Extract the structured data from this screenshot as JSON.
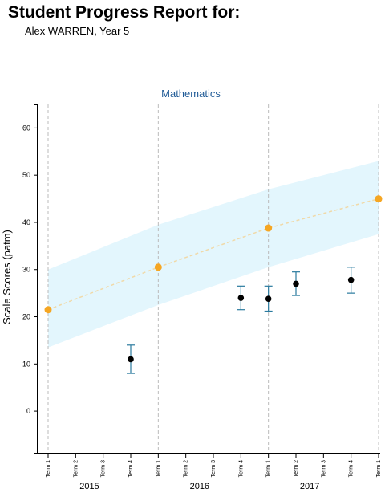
{
  "header": {
    "title": "Student Progress Report for:",
    "student": "Alex WARREN, Year 5"
  },
  "colors": {
    "band": "#e3f6fd",
    "expected_point": "#f5a623",
    "expected_line": "#f0d9a8",
    "student_point": "#000000",
    "error_bar": "#2a7a9e",
    "title": "#1f5a96"
  },
  "chart_data": {
    "type": "scatter",
    "title": "Mathematics",
    "ylabel": "Scale Scores (patm)",
    "xlabel": "",
    "ylim": [
      -9,
      65
    ],
    "yticks": [
      0,
      10,
      20,
      30,
      40,
      50,
      60
    ],
    "grid": "vertical dashed at Term 1",
    "x_terms": [
      "Term 1",
      "Term 2",
      "Term 3",
      "Term 4",
      "Term 1",
      "Term 2",
      "Term 3",
      "Term 4",
      "Term 1",
      "Term 2",
      "Term 3",
      "Term 4",
      "Term 1"
    ],
    "years": [
      {
        "label": "2015",
        "center_term": 1.5
      },
      {
        "label": "2016",
        "center_term": 5.5
      },
      {
        "label": "2017",
        "center_term": 9.5
      }
    ],
    "expected": [
      {
        "term": 0,
        "value": 21.5
      },
      {
        "term": 4,
        "value": 30.5
      },
      {
        "term": 8,
        "value": 38.8
      },
      {
        "term": 12,
        "value": 45
      }
    ],
    "band": [
      {
        "term": 0,
        "lower": 13.5,
        "upper": 30
      },
      {
        "term": 4,
        "lower": 22.5,
        "upper": 39.5
      },
      {
        "term": 8,
        "lower": 30.5,
        "upper": 47
      },
      {
        "term": 12,
        "lower": 37.5,
        "upper": 53
      }
    ],
    "scores": [
      {
        "term": 3,
        "value": 11,
        "low": 8,
        "high": 14
      },
      {
        "term": 7,
        "value": 24,
        "low": 21.5,
        "high": 26.5
      },
      {
        "term": 8,
        "value": 23.8,
        "low": 21.2,
        "high": 26.5
      },
      {
        "term": 9,
        "value": 27,
        "low": 24.5,
        "high": 29.5
      },
      {
        "term": 11,
        "value": 27.8,
        "low": 25,
        "high": 30.5
      }
    ]
  }
}
